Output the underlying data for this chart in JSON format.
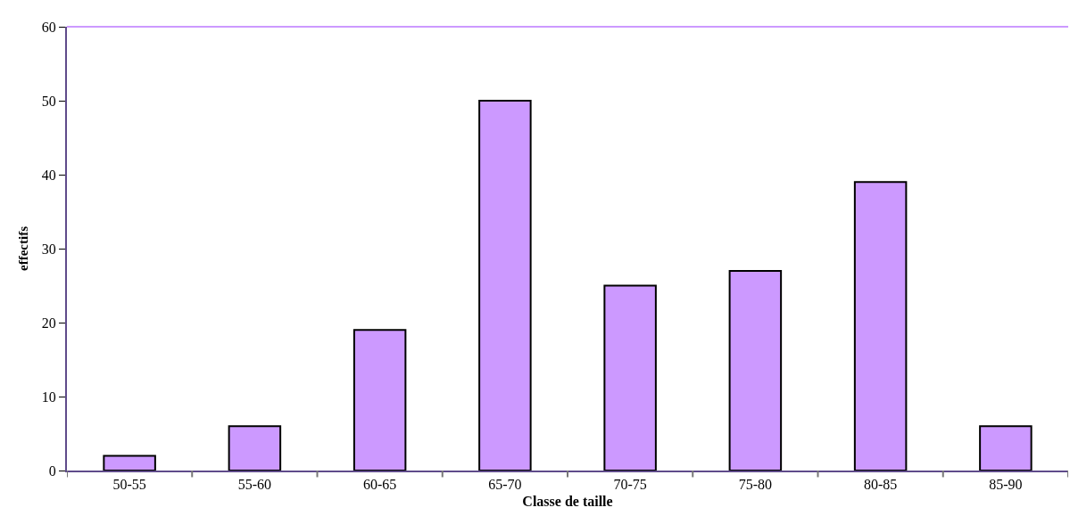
{
  "chart_data": {
    "type": "bar",
    "xlabel": "Classe de taille",
    "ylabel": "effectifs",
    "categories": [
      "50-55",
      "55-60",
      "60-65",
      "65-70",
      "70-75",
      "75-80",
      "80-85",
      "85-90"
    ],
    "values": [
      2,
      6,
      19,
      50,
      25,
      27,
      39,
      6
    ],
    "color": "#cc99ff",
    "ylim": [
      0,
      60
    ],
    "yticks": [
      0,
      10,
      20,
      30,
      40,
      50,
      60
    ]
  }
}
